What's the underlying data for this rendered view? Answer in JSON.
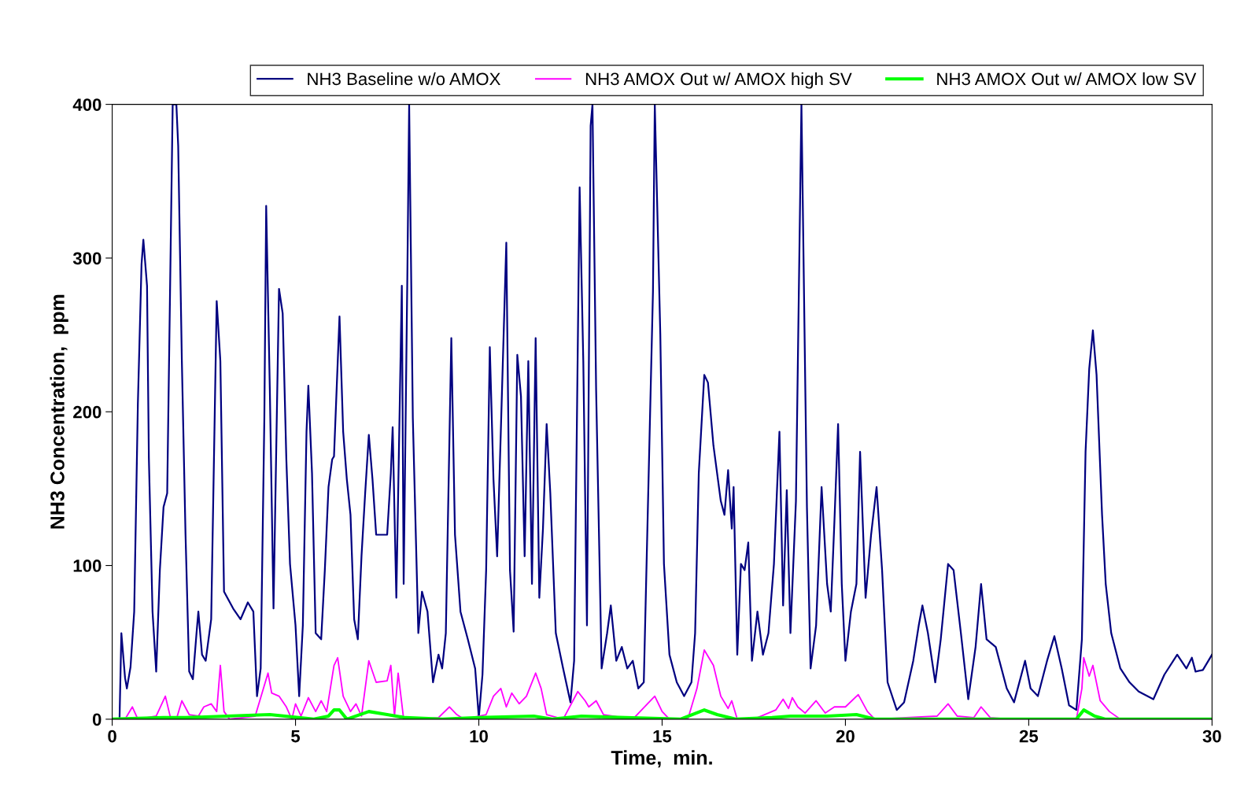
{
  "chart_data": {
    "type": "line",
    "xlabel": "Time,  min.",
    "ylabel": "NH3 Concentration,  ppm",
    "xlim": [
      0,
      30
    ],
    "xticks": [
      0,
      5,
      10,
      15,
      20,
      25,
      30
    ],
    "ylim": [
      0,
      400
    ],
    "yticks": [
      0,
      100,
      200,
      300,
      400
    ],
    "grid": false,
    "legend": "top right",
    "marker": "none",
    "line_style": "solid",
    "series": [
      {
        "name": "NH3 Baseline w/o AMOX",
        "color": "#000080",
        "x": [
          0,
          0.2,
          0.25,
          0.35,
          0.4,
          0.5,
          0.6,
          0.7,
          0.8,
          0.85,
          0.95,
          1.0,
          1.1,
          1.2,
          1.3,
          1.4,
          1.5,
          1.65,
          1.75,
          1.8,
          1.9,
          2.0,
          2.1,
          2.2,
          2.3,
          2.35,
          2.45,
          2.55,
          2.7,
          2.85,
          2.95,
          3.05,
          3.3,
          3.5,
          3.7,
          3.85,
          3.95,
          4.05,
          4.15,
          4.2,
          4.3,
          4.4,
          4.45,
          4.55,
          4.65,
          4.75,
          4.85,
          5.0,
          5.1,
          5.2,
          5.3,
          5.35,
          5.45,
          5.55,
          5.7,
          5.8,
          5.9,
          6.0,
          6.05,
          6.2,
          6.3,
          6.4,
          6.5,
          6.6,
          6.7,
          6.8,
          6.9,
          7.0,
          7.1,
          7.2,
          7.5,
          7.6,
          7.65,
          7.75,
          7.9,
          7.95,
          8.05,
          8.1,
          8.2,
          8.35,
          8.45,
          8.6,
          8.75,
          8.9,
          9.0,
          9.1,
          9.25,
          9.35,
          9.5,
          9.7,
          9.9,
          10.0,
          10.1,
          10.2,
          10.3,
          10.4,
          10.5,
          10.6,
          10.75,
          10.85,
          10.95,
          11.05,
          11.15,
          11.25,
          11.35,
          11.45,
          11.55,
          11.65,
          11.75,
          11.85,
          11.95,
          12.1,
          12.3,
          12.5,
          12.6,
          12.75,
          12.85,
          12.95,
          13.05,
          13.1,
          13.2,
          13.35,
          13.5,
          13.6,
          13.75,
          13.9,
          14.05,
          14.2,
          14.35,
          14.5,
          14.75,
          14.8,
          14.95,
          15.05,
          15.2,
          15.4,
          15.6,
          15.8,
          15.9,
          16.0,
          16.15,
          16.25,
          16.4,
          16.6,
          16.7,
          16.8,
          16.9,
          16.95,
          17.05,
          17.15,
          17.25,
          17.35,
          17.45,
          17.6,
          17.75,
          17.9,
          18.05,
          18.2,
          18.3,
          18.4,
          18.5,
          18.65,
          18.8,
          18.95,
          19.05,
          19.2,
          19.35,
          19.5,
          19.6,
          19.7,
          19.8,
          19.9,
          20.0,
          20.15,
          20.3,
          20.4,
          20.55,
          20.7,
          20.85,
          21.0,
          21.15,
          21.4,
          21.6,
          21.85,
          22.0,
          22.1,
          22.25,
          22.45,
          22.6,
          22.8,
          22.95,
          23.15,
          23.35,
          23.55,
          23.7,
          23.85,
          24.1,
          24.4,
          24.6,
          24.9,
          25.05,
          25.25,
          25.5,
          25.7,
          25.9,
          26.1,
          26.3,
          26.45,
          26.55,
          26.65,
          26.75,
          26.85,
          27.0,
          27.1,
          27.25,
          27.5,
          27.75,
          28.0,
          28.4,
          28.7,
          29.05,
          29.3,
          29.45,
          29.55,
          29.75,
          30.0
        ],
        "values": [
          0,
          0,
          56,
          27,
          20,
          34,
          70,
          205,
          296,
          312,
          282,
          170,
          70,
          31,
          97,
          138,
          147,
          400,
          400,
          373,
          233,
          120,
          31,
          26,
          56,
          70,
          42,
          38,
          65,
          272,
          233,
          83,
          72,
          65,
          76,
          70,
          15,
          33,
          196,
          334,
          214,
          72,
          142,
          280,
          264,
          169,
          101,
          61,
          15,
          61,
          187,
          217,
          160,
          56,
          52,
          97,
          151,
          169,
          171,
          262,
          187,
          156,
          133,
          65,
          52,
          106,
          147,
          185,
          156,
          120,
          120,
          160,
          190,
          79,
          282,
          88,
          287,
          400,
          196,
          56,
          83,
          70,
          24,
          42,
          33,
          56,
          248,
          120,
          70,
          52,
          33,
          1,
          29,
          97,
          242,
          156,
          106,
          187,
          310,
          97,
          57,
          237,
          210,
          106,
          233,
          88,
          248,
          79,
          124,
          192,
          147,
          56,
          33,
          11,
          38,
          346,
          233,
          61,
          386,
          400,
          214,
          33,
          56,
          74,
          38,
          47,
          33,
          38,
          20,
          24,
          278,
          400,
          251,
          101,
          42,
          24,
          15,
          24,
          56,
          160,
          224,
          219,
          178,
          142,
          133,
          162,
          124,
          151,
          42,
          101,
          97,
          115,
          38,
          70,
          42,
          56,
          101,
          187,
          74,
          149,
          56,
          142,
          400,
          138,
          33,
          61,
          151,
          88,
          70,
          129,
          192,
          88,
          38,
          70,
          88,
          174,
          79,
          120,
          151,
          97,
          24,
          6,
          11,
          38,
          61,
          74,
          56,
          24,
          52,
          101,
          97,
          56,
          13,
          47,
          88,
          52,
          47,
          20,
          11,
          38,
          20,
          15,
          38,
          54,
          33,
          9,
          6,
          52,
          174,
          228,
          253,
          224,
          133,
          88,
          56,
          33,
          24,
          18,
          13,
          29,
          42,
          33,
          40,
          31,
          32,
          42
        ]
      },
      {
        "name": "NH3 AMOX Out w/ AMOX high SV",
        "color": "#ff00ff",
        "x": [
          0,
          0.35,
          0.55,
          0.7,
          1.2,
          1.45,
          1.6,
          1.75,
          1.9,
          2.1,
          2.35,
          2.5,
          2.7,
          2.85,
          2.95,
          3.05,
          3.2,
          3.9,
          4.1,
          4.25,
          4.35,
          4.55,
          4.75,
          4.9,
          5.0,
          5.15,
          5.35,
          5.55,
          5.7,
          5.85,
          6.05,
          6.15,
          6.3,
          6.5,
          6.65,
          6.8,
          7.0,
          7.2,
          7.5,
          7.6,
          7.7,
          7.8,
          7.95,
          8.9,
          9.2,
          9.4,
          9.6,
          10.2,
          10.4,
          10.6,
          10.75,
          10.9,
          11.1,
          11.3,
          11.55,
          11.7,
          11.85,
          12.3,
          12.7,
          12.9,
          13.0,
          13.2,
          13.4,
          14.2,
          14.8,
          15.0,
          15.2,
          15.7,
          15.95,
          16.15,
          16.4,
          16.6,
          16.8,
          16.9,
          17.05,
          17.5,
          18.1,
          18.3,
          18.45,
          18.55,
          18.7,
          18.9,
          19.2,
          19.45,
          19.7,
          20.0,
          20.35,
          20.6,
          20.8,
          22.5,
          22.8,
          23.05,
          23.5,
          23.7,
          23.95,
          24.5,
          26.3,
          26.45,
          26.5,
          26.65,
          26.75,
          26.95,
          27.2,
          27.5,
          30
        ],
        "values": [
          0,
          0,
          8,
          0,
          2,
          15,
          0,
          0,
          12,
          3,
          2,
          8,
          10,
          5,
          35,
          5,
          0,
          2,
          18,
          30,
          17,
          15,
          8,
          0,
          10,
          2,
          14,
          5,
          12,
          5,
          35,
          40,
          15,
          5,
          10,
          2,
          38,
          24,
          25,
          35,
          2,
          30,
          0,
          1,
          8,
          3,
          0,
          3,
          15,
          20,
          8,
          17,
          10,
          15,
          30,
          20,
          3,
          0,
          18,
          12,
          8,
          12,
          3,
          0,
          15,
          5,
          0,
          0,
          20,
          45,
          35,
          15,
          7,
          12,
          0,
          0,
          6,
          13,
          7,
          14,
          8,
          4,
          12,
          4,
          8,
          8,
          16,
          5,
          0,
          2,
          10,
          2,
          1,
          8,
          1,
          0,
          0,
          20,
          40,
          28,
          35,
          12,
          5,
          0,
          0
        ]
      },
      {
        "name": "NH3 AMOX Out w/ AMOX low SV",
        "color": "#00ff00",
        "x": [
          0,
          1.4,
          2.0,
          4.3,
          5.5,
          5.9,
          6.05,
          6.2,
          6.4,
          7.0,
          7.5,
          8.0,
          9.0,
          10.0,
          11.5,
          12.0,
          12.8,
          14.0,
          15.5,
          16.15,
          16.5,
          17.0,
          18.0,
          18.5,
          19.5,
          20.3,
          20.8,
          26.3,
          26.5,
          26.8,
          27.1,
          30
        ],
        "values": [
          0,
          1,
          1,
          3,
          0,
          2,
          6,
          6,
          0,
          5,
          3,
          1,
          0,
          1,
          2,
          0,
          2,
          1,
          0,
          6,
          3,
          0,
          1,
          2,
          2,
          3,
          0,
          0,
          6,
          2,
          0,
          0
        ]
      }
    ]
  }
}
